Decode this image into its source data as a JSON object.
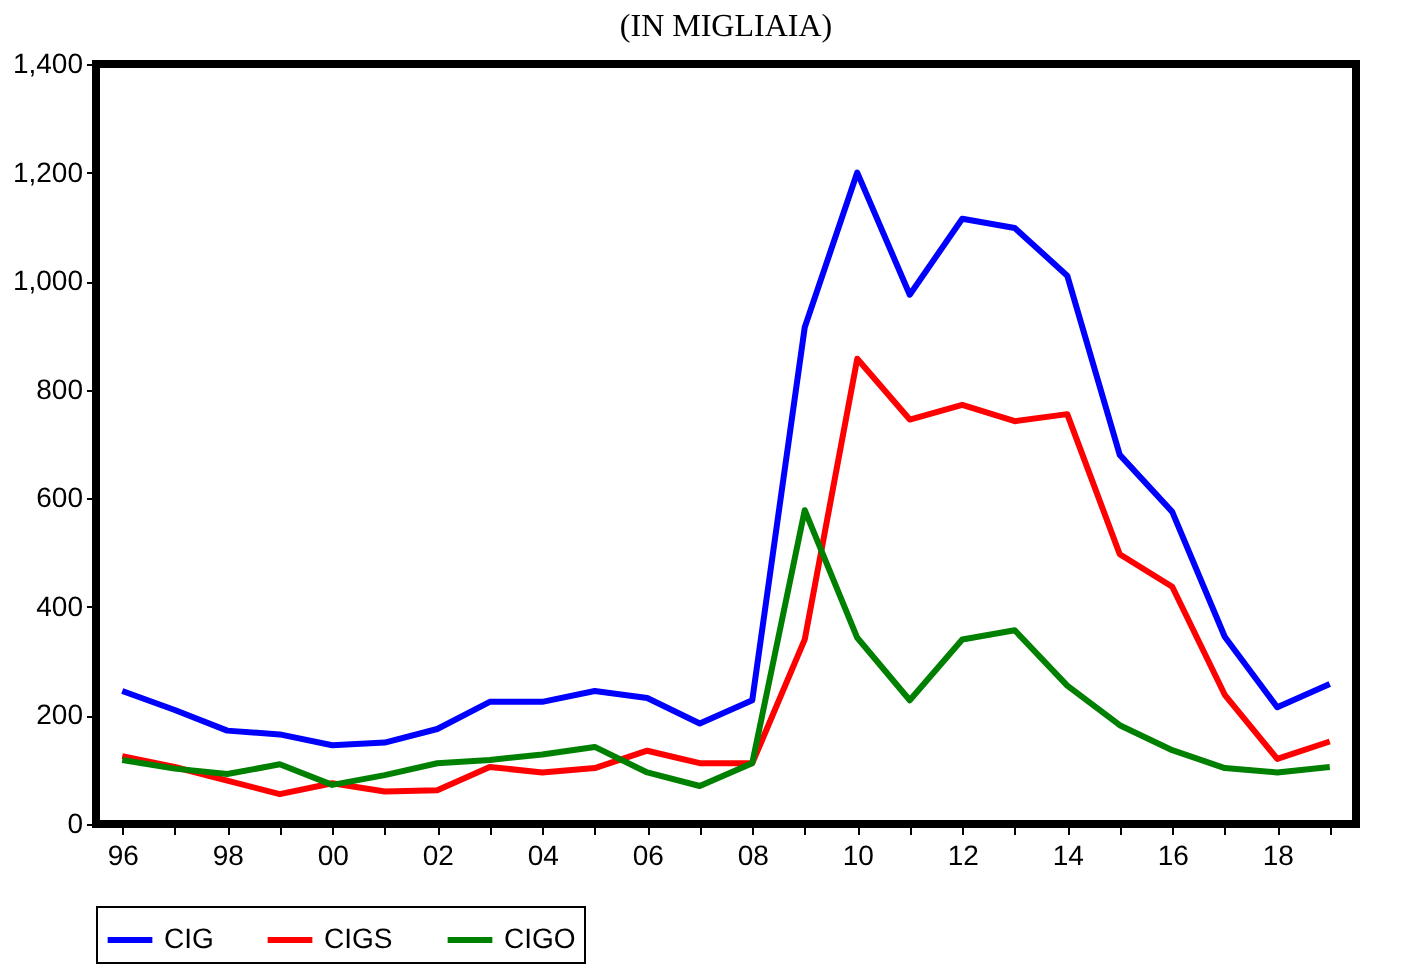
{
  "chart_data": {
    "type": "line",
    "title": "(IN MIGLIAIA)",
    "categories": [
      "96",
      null,
      "98",
      null,
      "00",
      null,
      "02",
      null,
      "04",
      null,
      "06",
      null,
      "08",
      null,
      "10",
      null,
      "12",
      null,
      "14",
      null,
      "16",
      null,
      "18",
      null
    ],
    "series": [
      {
        "name": "CIG",
        "color": "#0000ff",
        "values": [
          245,
          210,
          172,
          165,
          145,
          150,
          175,
          225,
          225,
          245,
          232,
          185,
          228,
          915,
          1200,
          975,
          1115,
          1098,
          1010,
          680,
          575,
          345,
          215,
          258
        ]
      },
      {
        "name": "CIGS",
        "color": "#ff0000",
        "values": [
          125,
          105,
          80,
          55,
          75,
          60,
          62,
          105,
          95,
          103,
          135,
          112,
          112,
          340,
          857,
          745,
          772,
          742,
          755,
          497,
          437,
          238,
          120,
          152
        ]
      },
      {
        "name": "CIGO",
        "color": "#008000",
        "values": [
          118,
          102,
          92,
          110,
          72,
          90,
          112,
          118,
          128,
          142,
          95,
          70,
          112,
          578,
          343,
          228,
          340,
          357,
          255,
          182,
          136,
          103,
          95,
          105
        ]
      }
    ],
    "ylim": [
      0,
      1400
    ],
    "yticks": [
      0,
      200,
      400,
      600,
      800,
      {
        "value": 1000,
        "label": "1,000"
      },
      {
        "value": 1200,
        "label": "1,200"
      },
      {
        "value": 1400,
        "label": "1,400"
      }
    ],
    "grid": false,
    "legend": "bottom",
    "line_style": "solid",
    "marker": "none"
  }
}
